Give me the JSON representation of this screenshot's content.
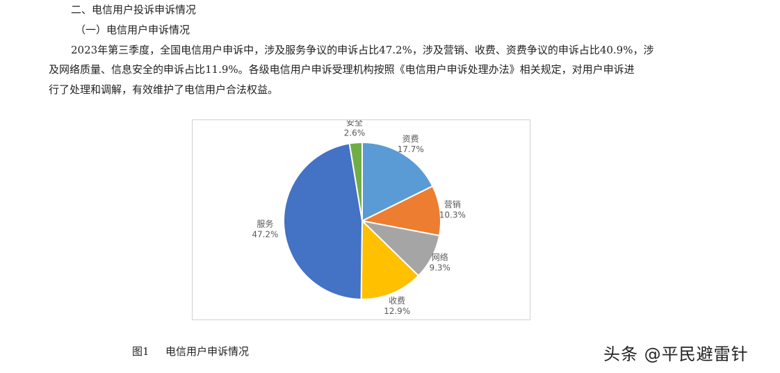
{
  "document": {
    "heading": "二、电信用户投诉申诉情况",
    "subheading": "（一）电信用户申诉情况",
    "para_line1": "2023年第三季度，全国电信用户申诉中，涉及服务争议的申诉占比47.2%，涉及营销、收费、资费争议的申诉占比40.9%，涉",
    "para_line2": "及网络质量、信息安全的申诉占比11.9%。各级电信用户申诉受理机构按照《电信用户申诉处理办法》相关规定，对用户申诉进",
    "para_line3": "行了处理和调解，有效维护了电信用户合法权益。",
    "caption_number": "图1",
    "caption_title": "电信用户申诉情况",
    "watermark": "头条 @平民避雷针"
  },
  "chart_data": {
    "type": "pie",
    "start": "12 o'clock",
    "direction": "clockwise",
    "slices": [
      {
        "label": "资费",
        "value": 17.7,
        "display": "17.7%",
        "color": "#5b9bd5"
      },
      {
        "label": "营销",
        "value": 10.3,
        "display": "10.3%",
        "color": "#ed7d31"
      },
      {
        "label": "网络",
        "value": 9.3,
        "display": "9.3%",
        "color": "#a5a5a5"
      },
      {
        "label": "收费",
        "value": 12.9,
        "display": "12.9%",
        "color": "#ffc000"
      },
      {
        "label": "服务",
        "value": 47.2,
        "display": "47.2%",
        "color": "#4472c4"
      },
      {
        "label": "安全",
        "value": 2.6,
        "display": "2.6%",
        "color": "#70ad47"
      }
    ]
  }
}
